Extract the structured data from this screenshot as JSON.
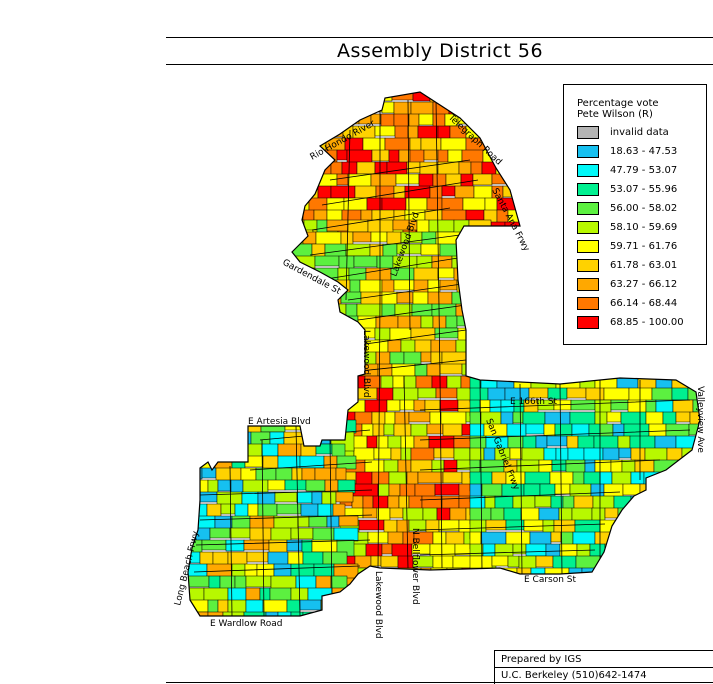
{
  "title": "Assembly District 56",
  "legend": {
    "title_line1": "Percentage vote",
    "title_line2": "Pete Wilson (R)",
    "items": [
      {
        "label": "invalid data",
        "color": "#b4b4b4"
      },
      {
        "label": "18.63 -  47.53",
        "color": "#16c0f0"
      },
      {
        "label": "47.79 -  53.07",
        "color": "#00f8f8"
      },
      {
        "label": "53.07 -  55.96",
        "color": "#00f090"
      },
      {
        "label": "56.00 -  58.02",
        "color": "#5cf040"
      },
      {
        "label": "58.10 -  59.69",
        "color": "#b8f800"
      },
      {
        "label": "59.71 -  61.76",
        "color": "#ffff00"
      },
      {
        "label": "61.78 -  63.01",
        "color": "#ffd200"
      },
      {
        "label": "63.27 -  66.12",
        "color": "#ffa800"
      },
      {
        "label": "66.14 -  68.44",
        "color": "#ff7800"
      },
      {
        "label": "68.85 - 100.00",
        "color": "#ff0000"
      }
    ]
  },
  "streets": {
    "rio_hondo": "Rio Hondo River",
    "telegraph": "Telegraph Road",
    "santa_ana": "Santa Ana Frwy",
    "lakewood_upper": "Lakewood Blvd",
    "gardendale": "Gardendale St",
    "lakewood_mid": "Lakewood Blvd",
    "e_166th": "E 166th St",
    "e_artesia": "E Artesia Blvd",
    "san_gabriel": "San Gabriel Frwy",
    "valleyview": "Valleyview Ave",
    "long_beach": "Long Beach Frwy",
    "lakewood_lower": "Lakewood Blvd",
    "bellflower": "N Bellflower Blvd",
    "e_carson": "E Carson St",
    "e_wardlow": "E Wardlow Road"
  },
  "footer": {
    "line1": "Prepared by IGS",
    "line2": "U.C. Berkeley (510)642-1474"
  }
}
